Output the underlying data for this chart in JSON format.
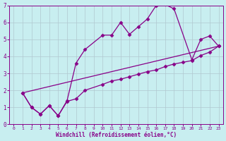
{
  "xlabel": "Windchill (Refroidissement éolien,°C)",
  "xlim": [
    -0.5,
    23.5
  ],
  "ylim": [
    0,
    7
  ],
  "xticks": [
    0,
    1,
    2,
    3,
    4,
    5,
    6,
    7,
    8,
    9,
    10,
    11,
    12,
    13,
    14,
    15,
    16,
    17,
    18,
    19,
    20,
    21,
    22,
    23
  ],
  "yticks": [
    0,
    1,
    2,
    3,
    4,
    5,
    6,
    7
  ],
  "bg_color": "#c8eef0",
  "line_color": "#880088",
  "grid_color": "#b0c8d0",
  "series": [
    {
      "x": [
        1,
        2,
        3,
        4,
        5,
        6,
        7,
        8,
        10,
        11,
        12,
        13,
        14,
        15,
        16,
        17,
        18,
        20,
        21,
        22,
        23
      ],
      "y": [
        1.85,
        1.0,
        0.6,
        1.1,
        0.5,
        1.4,
        3.6,
        4.4,
        5.25,
        5.25,
        6.0,
        5.3,
        5.75,
        6.2,
        7.0,
        7.05,
        6.8,
        3.8,
        5.0,
        5.2,
        4.6
      ]
    },
    {
      "x": [
        1,
        23
      ],
      "y": [
        1.85,
        4.6
      ]
    },
    {
      "x": [
        1,
        2,
        3,
        4,
        5,
        6,
        7,
        8,
        10,
        11,
        12,
        13,
        14,
        15,
        16,
        17,
        18,
        19,
        20,
        21,
        22,
        23
      ],
      "y": [
        1.85,
        1.0,
        0.6,
        1.1,
        0.5,
        1.35,
        1.5,
        2.0,
        2.35,
        2.55,
        2.65,
        2.8,
        2.95,
        3.1,
        3.2,
        3.4,
        3.55,
        3.65,
        3.75,
        4.05,
        4.25,
        4.6
      ]
    }
  ],
  "marker": "D",
  "markersize": 2.5,
  "linewidth": 0.9,
  "tick_fontsize_x": 4.5,
  "tick_fontsize_y": 5.5,
  "xlabel_fontsize": 5.5
}
